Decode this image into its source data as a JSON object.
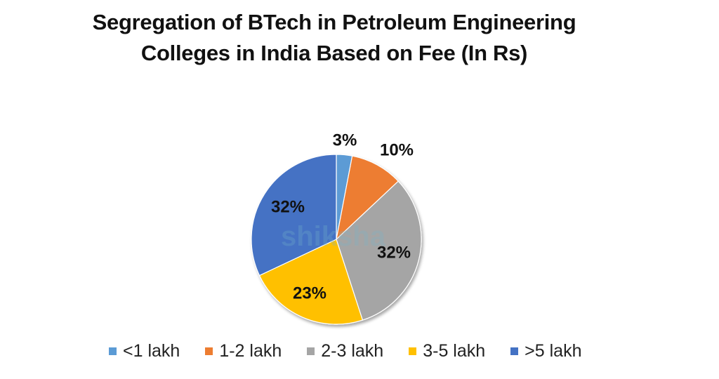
{
  "chart_data": {
    "type": "pie",
    "title": "Segregation of BTech in Petroleum Engineering Colleges in India Based on Fee (In Rs)",
    "title_lines": [
      "Segregation of BTech in Petroleum Engineering",
      "Colleges in India Based on Fee (In Rs)"
    ],
    "categories": [
      "<1 lakh",
      "1-2 lakh",
      "2-3 lakh",
      "3-5 lakh",
      ">5 lakh"
    ],
    "values": [
      3,
      10,
      32,
      23,
      32
    ],
    "labels": [
      "3%",
      "10%",
      "32%",
      "23%",
      "32%"
    ],
    "colors": [
      "#5B9BD5",
      "#ED7D31",
      "#A5A5A5",
      "#FFC000",
      "#4472C4"
    ],
    "legend_position": "bottom",
    "start_angle_deg": 0,
    "direction": "clockwise"
  },
  "watermark": "shiksha"
}
